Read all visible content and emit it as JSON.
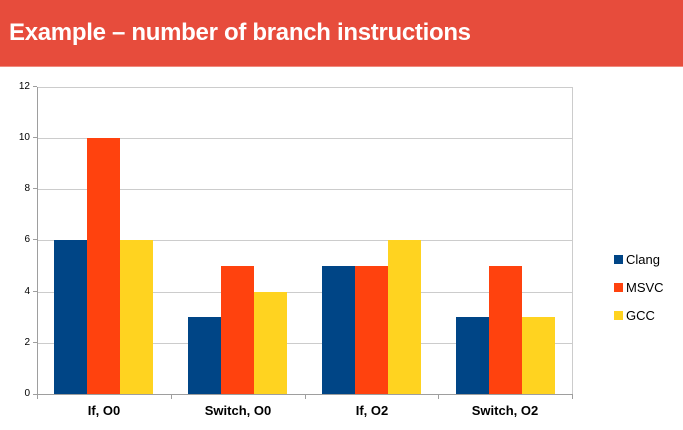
{
  "header": {
    "title": "Example – number of branch instructions"
  },
  "chart_data": {
    "type": "bar",
    "categories": [
      "If, O0",
      "Switch, O0",
      "If, O2",
      "Switch, O2"
    ],
    "series": [
      {
        "name": "Clang",
        "color": "#004586",
        "values": [
          6,
          3,
          5,
          3
        ]
      },
      {
        "name": "MSVC",
        "color": "#ff420e",
        "values": [
          10,
          5,
          5,
          5
        ]
      },
      {
        "name": "GCC",
        "color": "#ffd320",
        "values": [
          6,
          4,
          6,
          3
        ]
      }
    ],
    "ylim": [
      0,
      12
    ],
    "yticks": [
      0,
      2,
      4,
      6,
      8,
      10,
      12
    ],
    "grid": true,
    "legend_position": "right",
    "title": "",
    "xlabel": "",
    "ylabel": ""
  },
  "colors": {
    "header_bg": "#e74c3c",
    "header_edge": "#f08a7d",
    "title_text": "#ffffff",
    "grid": "#cccccc",
    "axis": "#9e9e9e",
    "label_text": "#000000"
  }
}
